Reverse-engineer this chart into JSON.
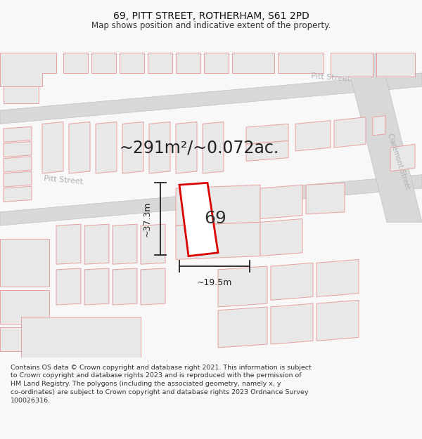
{
  "title": "69, PITT STREET, ROTHERHAM, S61 2PD",
  "subtitle": "Map shows position and indicative extent of the property.",
  "footer_lines": [
    "Contains OS data © Crown copyright and database right 2021. This information is subject",
    "to Crown copyright and database rights 2023 and is reproduced with the permission of",
    "HM Land Registry. The polygons (including the associated geometry, namely x, y",
    "co-ordinates) are subject to Crown copyright and database rights 2023 Ordnance Survey",
    "100026316."
  ],
  "area_text": "~291m²/~0.072ac.",
  "number_label": "69",
  "width_label": "~19.5m",
  "height_label": "~37.3m",
  "bg_color": "#f8f8f8",
  "map_bg": "#f8f8f8",
  "road_color": "#d8d8d8",
  "building_fill": "#e8e8e8",
  "building_edge": "#e8a0a0",
  "road_edge": "#c0c0c0",
  "highlight_color": "#dd0000",
  "highlight_fill": "#ffffff",
  "street_label_color": "#b0b0b0",
  "dim_color": "#222222",
  "area_text_color": "#222222",
  "number_color": "#333333",
  "title_fontsize": 10,
  "subtitle_fontsize": 8.5,
  "footer_fontsize": 6.8,
  "area_fontsize": 17,
  "number_fontsize": 18
}
